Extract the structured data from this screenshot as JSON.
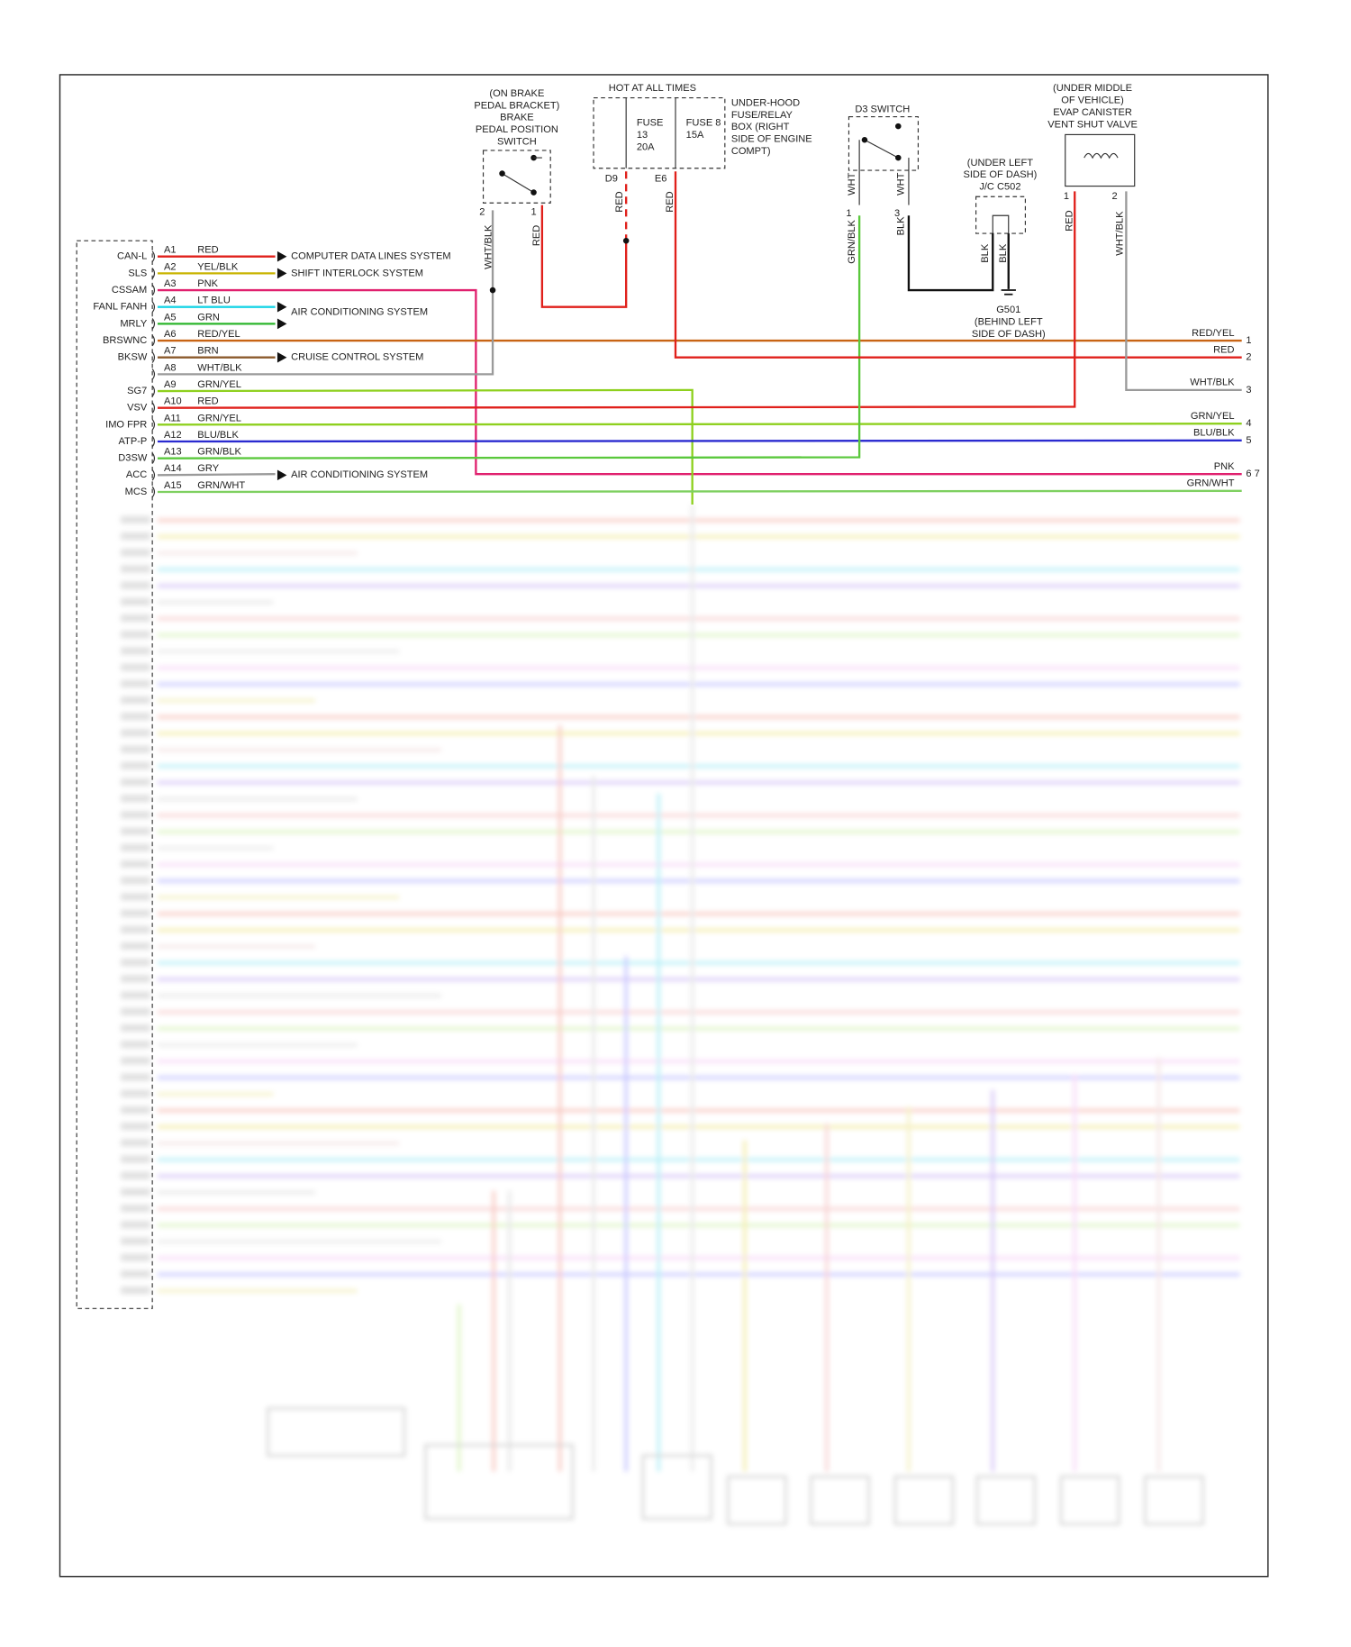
{
  "connector": {
    "pins": [
      {
        "signal": "CAN-L",
        "pin": "A1",
        "wire": "RED",
        "color": "#e0201b",
        "target": "COMPUTER DATA LINES SYSTEM"
      },
      {
        "signal": "SLS",
        "pin": "A2",
        "wire": "YEL/BLK",
        "color": "#c8b400",
        "target": "SHIFT INTERLOCK SYSTEM"
      },
      {
        "signal": "CSSAM",
        "pin": "A3",
        "wire": "PNK",
        "color": "#e0206e"
      },
      {
        "signal": "FANL FANH",
        "pin": "A4",
        "wire": "LT BLU",
        "color": "#19d4e6",
        "target": "AIR CONDITIONING SYSTEM"
      },
      {
        "signal": "MRLY",
        "pin": "A5",
        "wire": "GRN",
        "color": "#2cb52c"
      },
      {
        "signal": "BRSWNC",
        "pin": "A6",
        "wire": "RED/YEL",
        "color": "#c86414"
      },
      {
        "signal": "BKSW",
        "pin": "A7",
        "wire": "BRN",
        "color": "#8b5a2b",
        "target": "CRUISE CONTROL SYSTEM"
      },
      {
        "pin": "A8",
        "wire": "WHT/BLK",
        "color": "#9a9a9a"
      },
      {
        "signal": "SG7",
        "pin": "A9",
        "wire": "GRN/YEL",
        "color": "#8ed01e"
      },
      {
        "signal": "VSV",
        "pin": "A10",
        "wire": "RED",
        "color": "#e0201b"
      },
      {
        "signal": "IMO FPR",
        "pin": "A11",
        "wire": "GRN/YEL",
        "color": "#8ed01e"
      },
      {
        "signal": "ATP-P",
        "pin": "A12",
        "wire": "BLU/BLK",
        "color": "#2a2ad0"
      },
      {
        "signal": "D3SW",
        "pin": "A13",
        "wire": "GRN/BLK",
        "color": "#5ac83c"
      },
      {
        "signal": "ACC",
        "pin": "A14",
        "wire": "GRY",
        "color": "#9a9a9a",
        "target": "AIR CONDITIONING SYSTEM"
      },
      {
        "signal": "MCS",
        "pin": "A15",
        "wire": "GRN/WHT",
        "color": "#7ed060"
      }
    ]
  },
  "brake_switch": {
    "label": [
      "(ON BRAKE",
      "PEDAL BRACKET)",
      "BRAKE",
      "PEDAL POSITION",
      "SWITCH"
    ],
    "pins": [
      "2",
      "1"
    ],
    "wires": [
      "WHT/BLK",
      "RED"
    ]
  },
  "fuse_box": {
    "note": "HOT AT ALL TIMES",
    "fuses": [
      [
        "FUSE",
        "13",
        "20A"
      ],
      [
        "FUSE 8",
        "15A"
      ]
    ],
    "label": [
      "UNDER-HOOD",
      "FUSE/RELAY",
      "BOX (RIGHT",
      "SIDE OF ENGINE",
      "COMPT)"
    ],
    "terminals": [
      "D9",
      "E6"
    ],
    "wires": [
      "RED",
      "RED"
    ]
  },
  "d3_switch": {
    "label": "D3 SWITCH",
    "wires_top": [
      "WHT",
      "WHT"
    ],
    "pins": [
      "1",
      "3"
    ],
    "wires": [
      "GRN/BLK",
      "BLK"
    ]
  },
  "junction": {
    "label": [
      "(UNDER LEFT",
      "SIDE OF DASH)",
      "J/C C502"
    ],
    "wires": [
      "BLK",
      "BLK"
    ]
  },
  "ground": {
    "label": [
      "G501",
      "(BEHIND LEFT",
      "SIDE OF DASH)"
    ]
  },
  "evap_valve": {
    "label": [
      "(UNDER MIDDLE",
      "OF VEHICLE)",
      "EVAP CANISTER",
      "VENT SHUT VALVE"
    ],
    "pins": [
      "1",
      "2"
    ],
    "wires": [
      "RED",
      "WHT/BLK"
    ]
  },
  "right_terminals": [
    {
      "wire": "RED/YEL",
      "number": "1"
    },
    {
      "wire": "RED",
      "number": "2"
    },
    {
      "wire": "WHT/BLK",
      "number": "3"
    },
    {
      "wire": "GRN/YEL",
      "number": "4"
    },
    {
      "wire": "BLU/BLK",
      "number": "5"
    },
    {
      "wire": "PNK",
      "number": "6 7"
    },
    {
      "wire": "GRN/WHT"
    }
  ]
}
